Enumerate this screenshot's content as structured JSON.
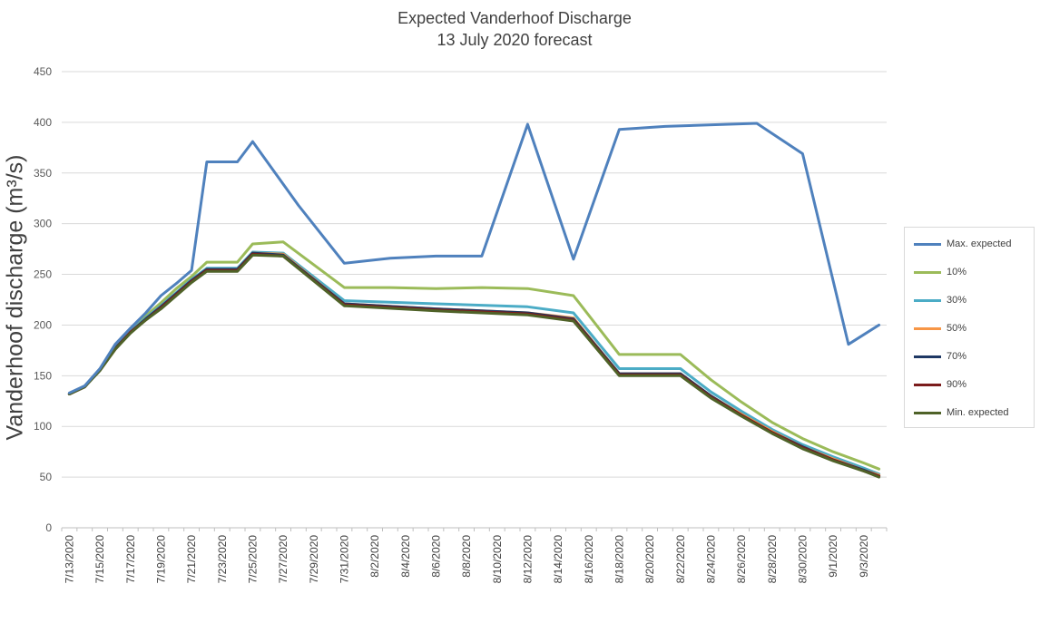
{
  "chart_data": {
    "type": "line",
    "title": "Expected Vanderhoof Discharge",
    "subtitle": "13 July 2020 forecast",
    "ylabel": "Vanderhoof discharge (m³/s)",
    "xlabel": "",
    "ylim": [
      0,
      450
    ],
    "yticks": [
      0,
      50,
      100,
      150,
      200,
      250,
      300,
      350,
      400,
      450
    ],
    "grid": "horizontal",
    "legend_position": "right",
    "x_tick_labels": [
      "7/13/2020",
      "7/15/2020",
      "7/17/2020",
      "7/19/2020",
      "7/21/2020",
      "7/23/2020",
      "7/25/2020",
      "7/27/2020",
      "7/29/2020",
      "7/31/2020",
      "8/2/2020",
      "8/4/2020",
      "8/6/2020",
      "8/8/2020",
      "8/10/2020",
      "8/12/2020",
      "8/14/2020",
      "8/16/2020",
      "8/18/2020",
      "8/20/2020",
      "8/22/2020",
      "8/24/2020",
      "8/26/2020",
      "8/28/2020",
      "8/30/2020",
      "9/1/2020",
      "9/3/2020"
    ],
    "series": [
      {
        "name": "Max. expected",
        "color": "#4f81bd",
        "points": [
          [
            "7/13/2020",
            133
          ],
          [
            "7/14/2020",
            140
          ],
          [
            "7/15/2020",
            157
          ],
          [
            "7/16/2020",
            181
          ],
          [
            "7/17/2020",
            197
          ],
          [
            "7/18/2020",
            212
          ],
          [
            "7/19/2020",
            229
          ],
          [
            "7/20/2020",
            241
          ],
          [
            "7/21/2020",
            254
          ],
          [
            "7/22/2020",
            361
          ],
          [
            "7/24/2020",
            361
          ],
          [
            "7/25/2020",
            381
          ],
          [
            "7/28/2020",
            318
          ],
          [
            "7/31/2020",
            261
          ],
          [
            "8/3/2020",
            266
          ],
          [
            "8/6/2020",
            268
          ],
          [
            "8/9/2020",
            268
          ],
          [
            "8/12/2020",
            398
          ],
          [
            "8/15/2020",
            265
          ],
          [
            "8/18/2020",
            393
          ],
          [
            "8/21/2020",
            396
          ],
          [
            "8/27/2020",
            399
          ],
          [
            "8/30/2020",
            369
          ],
          [
            "9/2/2020",
            181
          ],
          [
            "9/4/2020",
            200
          ]
        ]
      },
      {
        "name": "10%",
        "color": "#9bbb59",
        "points": [
          [
            "7/13/2020",
            132
          ],
          [
            "7/14/2020",
            139
          ],
          [
            "7/15/2020",
            156
          ],
          [
            "7/16/2020",
            178
          ],
          [
            "7/17/2020",
            195
          ],
          [
            "7/18/2020",
            209
          ],
          [
            "7/19/2020",
            222
          ],
          [
            "7/20/2020",
            236
          ],
          [
            "7/21/2020",
            248
          ],
          [
            "7/22/2020",
            262
          ],
          [
            "7/24/2020",
            262
          ],
          [
            "7/25/2020",
            280
          ],
          [
            "7/27/2020",
            282
          ],
          [
            "7/31/2020",
            237
          ],
          [
            "8/3/2020",
            237
          ],
          [
            "8/6/2020",
            236
          ],
          [
            "8/9/2020",
            237
          ],
          [
            "8/12/2020",
            236
          ],
          [
            "8/15/2020",
            229
          ],
          [
            "8/18/2020",
            171
          ],
          [
            "8/22/2020",
            171
          ],
          [
            "8/24/2020",
            146
          ],
          [
            "8/26/2020",
            124
          ],
          [
            "8/28/2020",
            104
          ],
          [
            "8/30/2020",
            88
          ],
          [
            "9/1/2020",
            75
          ],
          [
            "9/3/2020",
            64
          ],
          [
            "9/4/2020",
            58
          ]
        ]
      },
      {
        "name": "30%",
        "color": "#4bacc6",
        "points": [
          [
            "7/13/2020",
            132
          ],
          [
            "7/14/2020",
            139
          ],
          [
            "7/15/2020",
            156
          ],
          [
            "7/16/2020",
            177
          ],
          [
            "7/17/2020",
            194
          ],
          [
            "7/18/2020",
            207
          ],
          [
            "7/19/2020",
            219
          ],
          [
            "7/20/2020",
            232
          ],
          [
            "7/21/2020",
            245
          ],
          [
            "7/22/2020",
            256
          ],
          [
            "7/24/2020",
            256
          ],
          [
            "7/25/2020",
            272
          ],
          [
            "7/27/2020",
            271
          ],
          [
            "7/31/2020",
            224
          ],
          [
            "8/6/2020",
            221
          ],
          [
            "8/12/2020",
            218
          ],
          [
            "8/15/2020",
            212
          ],
          [
            "8/18/2020",
            157
          ],
          [
            "8/22/2020",
            157
          ],
          [
            "8/24/2020",
            134
          ],
          [
            "8/26/2020",
            115
          ],
          [
            "8/28/2020",
            97
          ],
          [
            "8/30/2020",
            82
          ],
          [
            "9/1/2020",
            70
          ],
          [
            "9/3/2020",
            59
          ],
          [
            "9/4/2020",
            53
          ]
        ]
      },
      {
        "name": "50%",
        "color": "#f79646",
        "points": [
          [
            "7/13/2020",
            132
          ],
          [
            "7/14/2020",
            139
          ],
          [
            "7/15/2020",
            156
          ],
          [
            "7/16/2020",
            177
          ],
          [
            "7/17/2020",
            193
          ],
          [
            "7/18/2020",
            206
          ],
          [
            "7/19/2020",
            218
          ],
          [
            "7/20/2020",
            231
          ],
          [
            "7/21/2020",
            244
          ],
          [
            "7/22/2020",
            255
          ],
          [
            "7/24/2020",
            255
          ],
          [
            "7/25/2020",
            271
          ],
          [
            "7/27/2020",
            270
          ],
          [
            "7/31/2020",
            221
          ],
          [
            "8/6/2020",
            216
          ],
          [
            "8/12/2020",
            212
          ],
          [
            "8/15/2020",
            207
          ],
          [
            "8/18/2020",
            152
          ],
          [
            "8/22/2020",
            152
          ],
          [
            "8/24/2020",
            130
          ],
          [
            "8/26/2020",
            112
          ],
          [
            "8/28/2020",
            95
          ],
          [
            "8/30/2020",
            80
          ],
          [
            "9/1/2020",
            68
          ],
          [
            "9/3/2020",
            57
          ],
          [
            "9/4/2020",
            52
          ]
        ]
      },
      {
        "name": "70%",
        "color": "#1f3864",
        "points": [
          [
            "7/13/2020",
            132
          ],
          [
            "7/14/2020",
            139
          ],
          [
            "7/15/2020",
            156
          ],
          [
            "7/16/2020",
            177
          ],
          [
            "7/17/2020",
            193
          ],
          [
            "7/18/2020",
            206
          ],
          [
            "7/19/2020",
            218
          ],
          [
            "7/20/2020",
            231
          ],
          [
            "7/21/2020",
            244
          ],
          [
            "7/22/2020",
            255
          ],
          [
            "7/24/2020",
            255
          ],
          [
            "7/25/2020",
            271
          ],
          [
            "7/27/2020",
            269
          ],
          [
            "7/31/2020",
            221
          ],
          [
            "8/6/2020",
            216
          ],
          [
            "8/12/2020",
            212
          ],
          [
            "8/15/2020",
            206
          ],
          [
            "8/18/2020",
            152
          ],
          [
            "8/22/2020",
            152
          ],
          [
            "8/24/2020",
            130
          ],
          [
            "8/26/2020",
            111
          ],
          [
            "8/28/2020",
            94
          ],
          [
            "8/30/2020",
            80
          ],
          [
            "9/1/2020",
            67
          ],
          [
            "9/3/2020",
            57
          ],
          [
            "9/4/2020",
            51
          ]
        ]
      },
      {
        "name": "90%",
        "color": "#7b1c1c",
        "points": [
          [
            "7/13/2020",
            132
          ],
          [
            "7/14/2020",
            139
          ],
          [
            "7/15/2020",
            156
          ],
          [
            "7/16/2020",
            176
          ],
          [
            "7/17/2020",
            193
          ],
          [
            "7/18/2020",
            205
          ],
          [
            "7/19/2020",
            217
          ],
          [
            "7/20/2020",
            230
          ],
          [
            "7/21/2020",
            243
          ],
          [
            "7/22/2020",
            254
          ],
          [
            "7/24/2020",
            254
          ],
          [
            "7/25/2020",
            270
          ],
          [
            "7/27/2020",
            268
          ],
          [
            "7/31/2020",
            220
          ],
          [
            "8/6/2020",
            215
          ],
          [
            "8/12/2020",
            211
          ],
          [
            "8/15/2020",
            205
          ],
          [
            "8/18/2020",
            151
          ],
          [
            "8/22/2020",
            151
          ],
          [
            "8/24/2020",
            129
          ],
          [
            "8/26/2020",
            111
          ],
          [
            "8/28/2020",
            94
          ],
          [
            "8/30/2020",
            79
          ],
          [
            "9/1/2020",
            67
          ],
          [
            "9/3/2020",
            56
          ],
          [
            "9/4/2020",
            51
          ]
        ]
      },
      {
        "name": "Min. expected",
        "color": "#4f6228",
        "points": [
          [
            "7/13/2020",
            132
          ],
          [
            "7/14/2020",
            139
          ],
          [
            "7/15/2020",
            155
          ],
          [
            "7/16/2020",
            176
          ],
          [
            "7/17/2020",
            192
          ],
          [
            "7/18/2020",
            205
          ],
          [
            "7/19/2020",
            216
          ],
          [
            "7/20/2020",
            229
          ],
          [
            "7/21/2020",
            242
          ],
          [
            "7/22/2020",
            253
          ],
          [
            "7/24/2020",
            253
          ],
          [
            "7/25/2020",
            269
          ],
          [
            "7/27/2020",
            268
          ],
          [
            "7/31/2020",
            219
          ],
          [
            "8/6/2020",
            214
          ],
          [
            "8/12/2020",
            210
          ],
          [
            "8/15/2020",
            204
          ],
          [
            "8/18/2020",
            150
          ],
          [
            "8/22/2020",
            150
          ],
          [
            "8/24/2020",
            128
          ],
          [
            "8/26/2020",
            110
          ],
          [
            "8/28/2020",
            93
          ],
          [
            "8/30/2020",
            78
          ],
          [
            "9/1/2020",
            66
          ],
          [
            "9/3/2020",
            56
          ],
          [
            "9/4/2020",
            50
          ]
        ]
      }
    ]
  }
}
